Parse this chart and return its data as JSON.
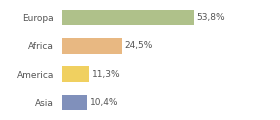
{
  "categories": [
    "Europa",
    "Africa",
    "America",
    "Asia"
  ],
  "values": [
    53.8,
    24.5,
    11.3,
    10.4
  ],
  "labels": [
    "53,8%",
    "24,5%",
    "11,3%",
    "10,4%"
  ],
  "colors": [
    "#afc18a",
    "#e8b882",
    "#f0d060",
    "#8090bb"
  ],
  "background_color": "#ffffff",
  "xlim": [
    0,
    75
  ],
  "bar_height": 0.55,
  "label_fontsize": 6.5,
  "tick_fontsize": 6.5,
  "text_color": "#555555",
  "grid_color": "#dddddd"
}
